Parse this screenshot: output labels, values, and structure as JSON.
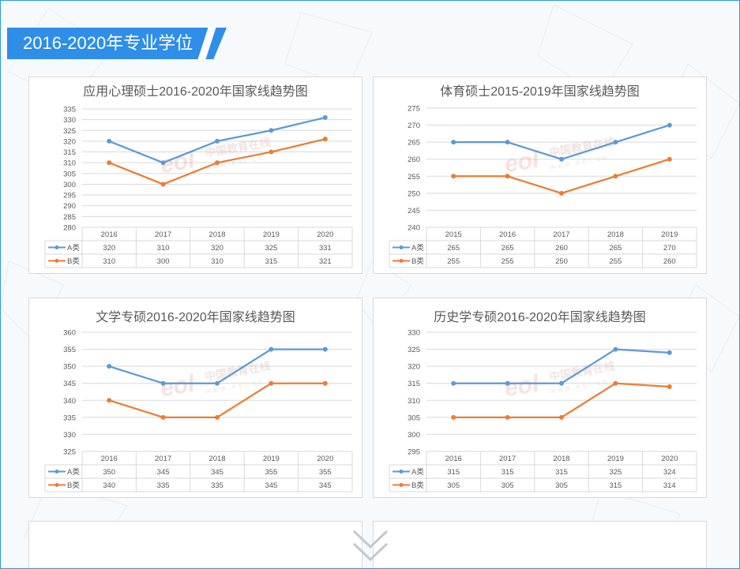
{
  "header": {
    "title": "2016-2020年专业学位"
  },
  "colors": {
    "accent": "#2e8ee8",
    "series_a": "#5b9bd5",
    "series_b": "#ed7d31"
  },
  "watermark": {
    "text": "中国教育在线",
    "url": "www.eol.cn",
    "logo": "eol"
  },
  "chart_data": [
    {
      "type": "line",
      "title": "应用心理硕士2016-2020年国家线趋势图",
      "categories": [
        "2016",
        "2017",
        "2018",
        "2019",
        "2020"
      ],
      "ylim": [
        280,
        335
      ],
      "ystep": 5,
      "yticks": [
        "335",
        "330",
        "325",
        "320",
        "315",
        "310",
        "305",
        "300",
        "295",
        "290",
        "285",
        "280"
      ],
      "series": [
        {
          "name": "A类",
          "values": [
            320,
            310,
            320,
            325,
            331
          ]
        },
        {
          "name": "B类",
          "values": [
            310,
            300,
            310,
            315,
            321
          ]
        }
      ],
      "data_table": true,
      "grid": true
    },
    {
      "type": "line",
      "title": "体育硕士2015-2019年国家线趋势图",
      "categories": [
        "2015",
        "2016",
        "2017",
        "2018",
        "2019"
      ],
      "ylim": [
        240,
        275
      ],
      "ystep": 5,
      "yticks": [
        "275",
        "270",
        "265",
        "260",
        "255",
        "250",
        "245",
        "240"
      ],
      "series": [
        {
          "name": "A类",
          "values": [
            265,
            265,
            260,
            265,
            270
          ]
        },
        {
          "name": "B类",
          "values": [
            255,
            255,
            250,
            255,
            260
          ]
        }
      ],
      "data_table": true,
      "grid": true
    },
    {
      "type": "line",
      "title": "文学专硕2016-2020年国家线趋势图",
      "categories": [
        "2016",
        "2017",
        "2018",
        "2019",
        "2020"
      ],
      "ylim": [
        325,
        360
      ],
      "ystep": 5,
      "yticks": [
        "360",
        "355",
        "350",
        "345",
        "340",
        "335",
        "330",
        "325"
      ],
      "series": [
        {
          "name": "A类",
          "values": [
            350,
            345,
            345,
            355,
            355
          ]
        },
        {
          "name": "B类",
          "values": [
            340,
            335,
            335,
            345,
            345
          ]
        }
      ],
      "data_table": true,
      "grid": true
    },
    {
      "type": "line",
      "title": "历史学专硕2016-2020年国家线趋势图",
      "categories": [
        "2016",
        "2017",
        "2018",
        "2019",
        "2020"
      ],
      "ylim": [
        295,
        330
      ],
      "ystep": 5,
      "yticks": [
        "330",
        "325",
        "320",
        "315",
        "310",
        "305",
        "300",
        "295"
      ],
      "series": [
        {
          "name": "A类",
          "values": [
            315,
            315,
            315,
            325,
            324
          ]
        },
        {
          "name": "B类",
          "values": [
            305,
            305,
            305,
            315,
            314
          ]
        }
      ],
      "data_table": true,
      "grid": true
    }
  ]
}
